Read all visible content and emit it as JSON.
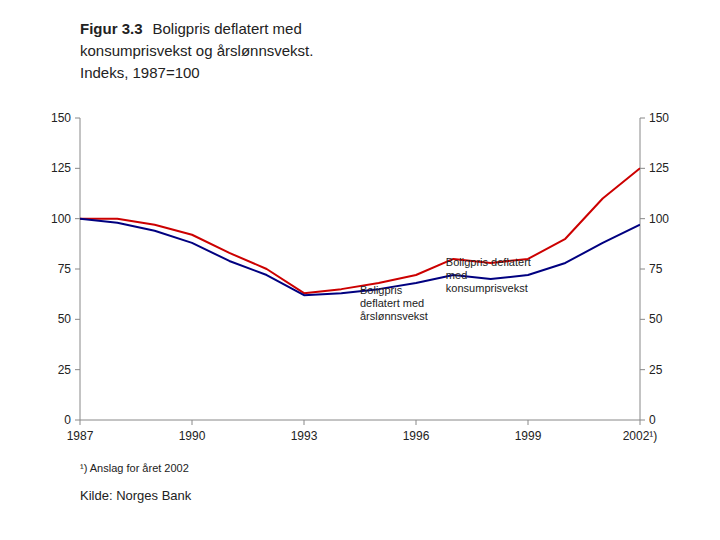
{
  "chart_data": {
    "type": "line",
    "title": "Figur 3.3",
    "subtitle": [
      "Boligpris deflatert med",
      "konsumprisvekst og årslønnsvekst.",
      "Indeks, 1987=100"
    ],
    "x": [
      1987,
      1988,
      1989,
      1990,
      1991,
      1992,
      1993,
      1994,
      1995,
      1996,
      1997,
      1998,
      1999,
      2000,
      2001,
      2002
    ],
    "series": [
      {
        "color": "#cc0000",
        "values": [
          100,
          100,
          97,
          92,
          83,
          75,
          63,
          65,
          68,
          72,
          80,
          78,
          80,
          90,
          110,
          125
        ]
      },
      {
        "color": "#000080",
        "values": [
          100,
          98,
          94,
          88,
          79,
          72,
          62,
          63,
          65,
          68,
          72,
          70,
          72,
          78,
          88,
          97
        ]
      }
    ],
    "xlim": [
      1987,
      2002
    ],
    "xticks": [
      1987,
      1990,
      1993,
      1996,
      1999,
      {
        "value": 2002,
        "label": "2002¹)"
      }
    ],
    "ylim": [
      0,
      150
    ],
    "yticks": [
      0,
      25,
      50,
      75,
      100,
      125,
      150
    ],
    "y2lim": [
      0,
      150
    ],
    "y2ticks": [
      0,
      25,
      50,
      75,
      100,
      125,
      150
    ],
    "grid": false,
    "annotations": [
      {
        "text": "Boligpris deflatert\nmed\nkonsumprisvekst",
        "x": 1996.8,
        "y": 82
      },
      {
        "text": "Boligpris\ndeflatert med\nårslønnsvekst",
        "x": 1994.5,
        "y": 68
      }
    ],
    "footnote": "¹) Anslag for året 2002",
    "source": "Kilde: Norges Bank"
  }
}
